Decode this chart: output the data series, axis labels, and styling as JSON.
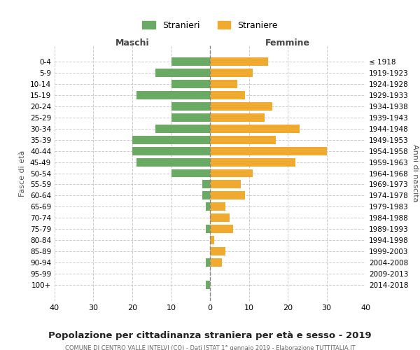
{
  "age_groups": [
    "0-4",
    "5-9",
    "10-14",
    "15-19",
    "20-24",
    "25-29",
    "30-34",
    "35-39",
    "40-44",
    "45-49",
    "50-54",
    "55-59",
    "60-64",
    "65-69",
    "70-74",
    "75-79",
    "80-84",
    "85-89",
    "90-94",
    "95-99",
    "100+"
  ],
  "birth_years": [
    "2014-2018",
    "2009-2013",
    "2004-2008",
    "1999-2003",
    "1994-1998",
    "1989-1993",
    "1984-1988",
    "1979-1983",
    "1974-1978",
    "1969-1973",
    "1964-1968",
    "1959-1963",
    "1954-1958",
    "1949-1953",
    "1944-1948",
    "1939-1943",
    "1934-1938",
    "1929-1933",
    "1924-1928",
    "1919-1923",
    "≤ 1918"
  ],
  "males": [
    10,
    14,
    10,
    19,
    10,
    10,
    14,
    20,
    20,
    19,
    10,
    2,
    2,
    1,
    0,
    1,
    0,
    0,
    1,
    0,
    1
  ],
  "females": [
    15,
    11,
    7,
    9,
    16,
    14,
    23,
    17,
    30,
    22,
    11,
    8,
    9,
    4,
    5,
    6,
    1,
    4,
    3,
    0,
    0
  ],
  "male_color": "#6aaa64",
  "female_color": "#f0aa30",
  "center_line_color": "#888888",
  "grid_color": "#cccccc",
  "background_color": "#ffffff",
  "title": "Popolazione per cittadinanza straniera per età e sesso - 2019",
  "subtitle": "COMUNE DI CENTRO VALLE INTELVI (CO) - Dati ISTAT 1° gennaio 2019 - Elaborazione TUTTITALIA.IT",
  "xlabel_left": "Maschi",
  "xlabel_right": "Femmine",
  "ylabel_left": "Fasce di età",
  "ylabel_right": "Anni di nascita",
  "legend_male": "Stranieri",
  "legend_female": "Straniere",
  "xlim": 40,
  "tick_step": 10
}
